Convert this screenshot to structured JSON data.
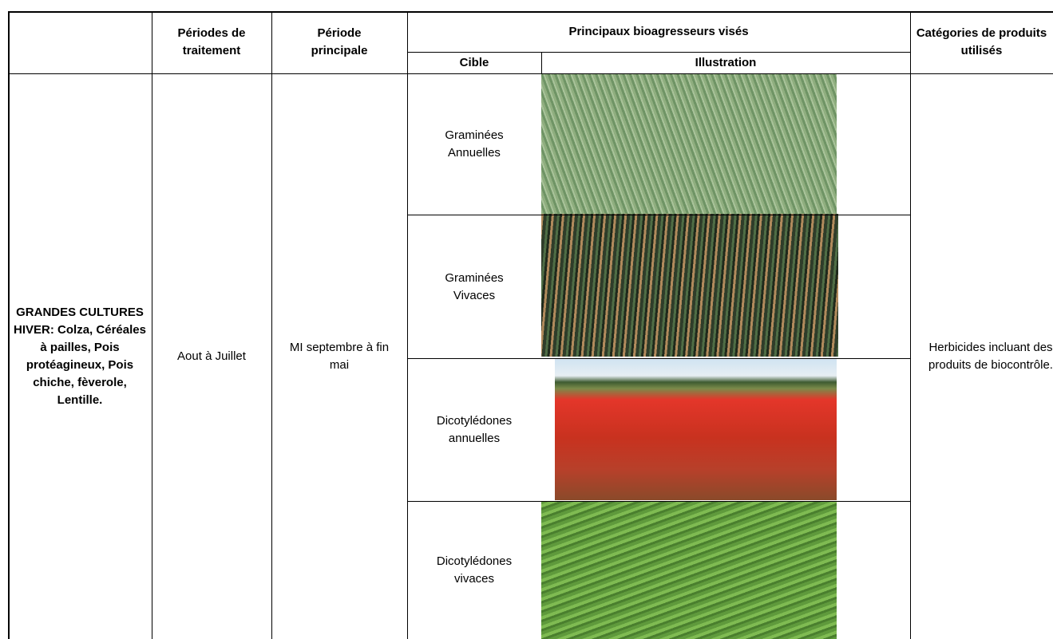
{
  "table": {
    "header": {
      "periodes": "Périodes de traitement",
      "periode_principale": "Période principale",
      "bioagresseurs": "Principaux bioagresseurs visés",
      "cible": "Cible",
      "illustration": "Illustration",
      "categories": "Catégories de produits utilisés"
    },
    "culture": "GRANDES CULTURES HIVER: Colza, Céréales à pailles, Pois protéagineux, Pois chiche, fèverole, Lentille.",
    "periodes": "Aout à Juillet",
    "periode_principale": "MI septembre à fin mai",
    "cibles": [
      "Graminées Annuelles",
      "Graminées Vivaces",
      "Dicotylédones annuelles",
      "Dicotylédones vivaces"
    ],
    "categories": "Herbicides incluant des produits de biocontrôle."
  }
}
